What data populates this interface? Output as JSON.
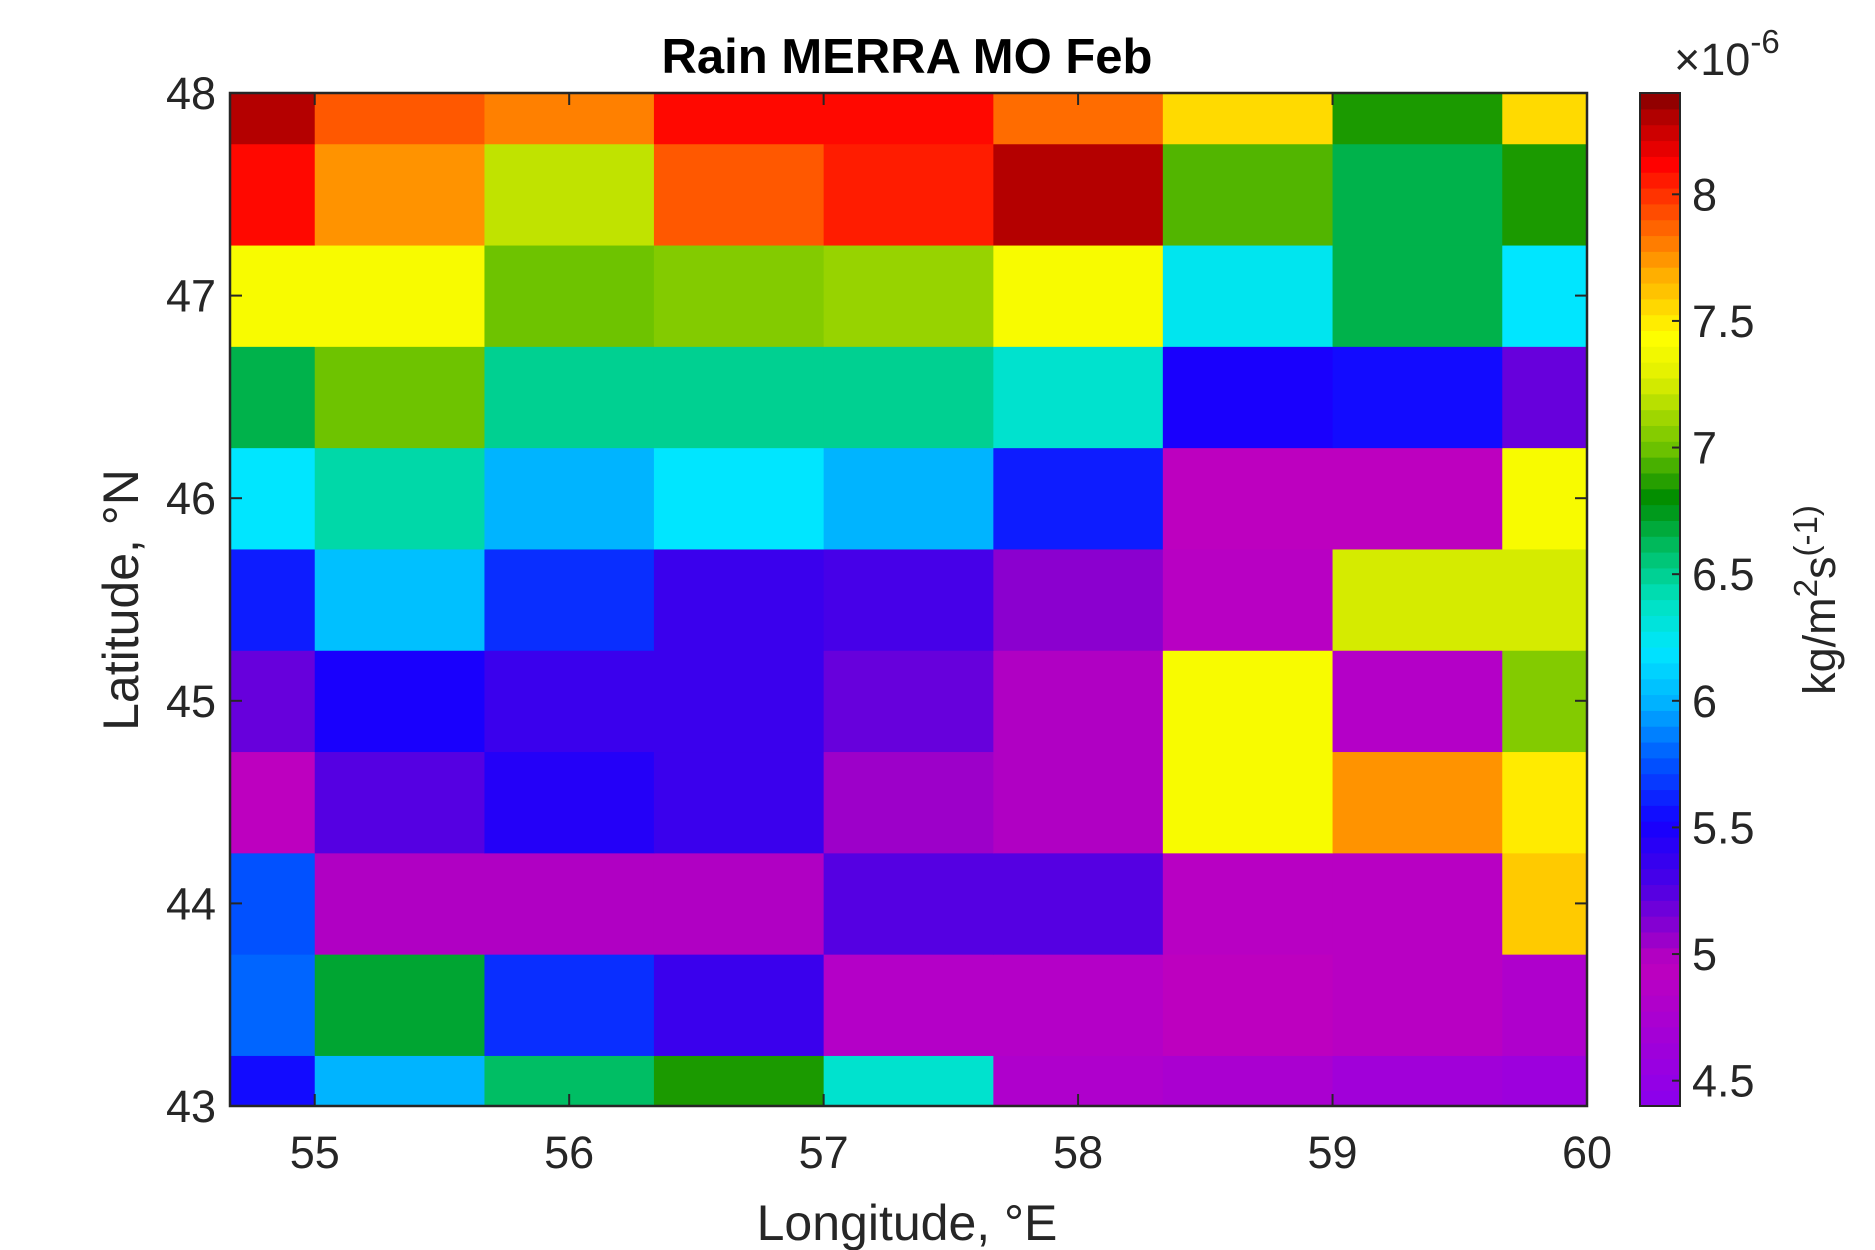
{
  "chart_data": {
    "type": "heatmap",
    "title": "Rain MERRA MO Feb",
    "xlabel": "Longitude, °E",
    "ylabel": "Latitude, °N",
    "xlim": [
      54.667,
      60
    ],
    "ylim": [
      43,
      48
    ],
    "x_ticks": [
      "55",
      "56",
      "57",
      "58",
      "59",
      "60"
    ],
    "y_ticks": [
      "43",
      "44",
      "45",
      "46",
      "47",
      "48"
    ],
    "x_edges": [
      54.667,
      55.0,
      55.667,
      56.333,
      57.0,
      57.667,
      58.333,
      59.0,
      59.667,
      60.0
    ],
    "y_edges": [
      43.0,
      43.25,
      43.75,
      44.25,
      44.75,
      45.25,
      45.75,
      46.25,
      46.75,
      47.25,
      47.75,
      48.0
    ],
    "values": [
      [
        5.55,
        6.0,
        6.6,
        6.85,
        6.35,
        4.8,
        4.75,
        4.65,
        4.6
      ],
      [
        5.8,
        6.7,
        5.65,
        5.35,
        4.85,
        4.85,
        4.95,
        4.9,
        4.8
      ],
      [
        5.75,
        5.0,
        5.0,
        5.0,
        5.25,
        5.25,
        4.9,
        4.9,
        7.6
      ],
      [
        4.95,
        5.25,
        5.45,
        5.35,
        5.05,
        5.0,
        7.4,
        7.75,
        7.5
      ],
      [
        5.2,
        5.5,
        5.35,
        5.35,
        5.2,
        5.0,
        7.4,
        4.85,
        7.05
      ],
      [
        5.6,
        6.05,
        5.65,
        5.35,
        5.3,
        5.1,
        4.9,
        7.25,
        7.25
      ],
      [
        6.2,
        6.45,
        6.0,
        6.2,
        6.0,
        5.6,
        4.95,
        4.95,
        7.4
      ],
      [
        6.65,
        7.0,
        6.5,
        6.5,
        6.5,
        6.35,
        5.5,
        5.55,
        5.2
      ],
      [
        7.4,
        7.4,
        7.0,
        7.05,
        7.1,
        7.4,
        6.25,
        6.65,
        6.2
      ],
      [
        8.1,
        7.75,
        7.2,
        7.9,
        8.05,
        8.3,
        6.95,
        6.65,
        6.85
      ],
      [
        8.3,
        7.9,
        7.8,
        8.1,
        8.1,
        7.85,
        7.55,
        6.85,
        7.55
      ]
    ],
    "colorbar": {
      "multiplier_base": "×10",
      "multiplier_exp": "-6",
      "label_main": "kg/m",
      "label_sup": "2",
      "label_s": "s",
      "label_sup2": "(-1)",
      "range": [
        4.4,
        8.4
      ],
      "ticks": [
        4.5,
        5,
        5.5,
        6,
        6.5,
        7,
        7.5,
        8
      ],
      "tick_labels": [
        "4.5",
        "5",
        "5.5",
        "6",
        "6.5",
        "7",
        "7.5",
        "8"
      ]
    },
    "colormap": "jet-like rainbow (purple → blue → cyan → green → yellow → orange → red → dark red)",
    "grid": false,
    "legend": "colorbar-right"
  },
  "colors": {
    "axis": "#262626",
    "frame": "#262626",
    "background": "#ffffff"
  }
}
